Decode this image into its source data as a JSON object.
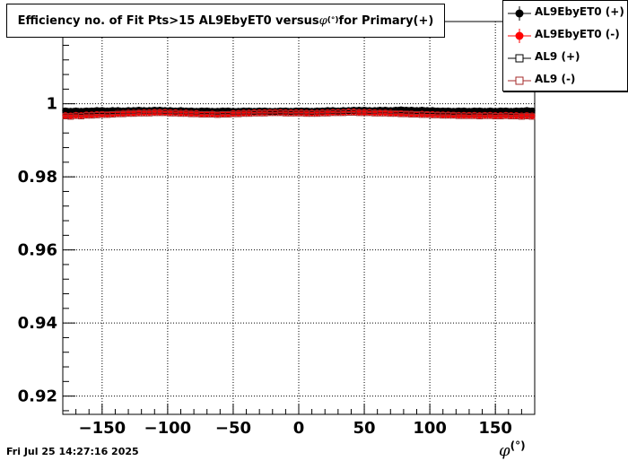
{
  "title": {
    "prefix": "Efficiency no. of Fit Pts>15 AL9EbyET0 versus ",
    "phi": "φ",
    "degree": "(°)",
    "suffix": " for Primary(+)"
  },
  "footer": {
    "date": "Fri Jul 25 14:27:16 2025"
  },
  "chart_data": {
    "type": "scatter",
    "xlabel_symbol": "φ",
    "xlabel_unit": "(°)",
    "ylabel": "",
    "xlim": [
      -180,
      180
    ],
    "ylim": [
      0.915,
      1.0225
    ],
    "xticks": [
      -150,
      -100,
      -50,
      0,
      50,
      100,
      150
    ],
    "xtick_labels": [
      "−150",
      "−100",
      "−50",
      "0",
      "50",
      "100",
      "150"
    ],
    "yticks": [
      0.92,
      0.94,
      0.96,
      0.98,
      1.0
    ],
    "ytick_labels": [
      "0.92",
      "0.94",
      "0.96",
      "0.98",
      "1"
    ],
    "grid": true,
    "legend_placement": "top-right",
    "x": [
      -178,
      -174,
      -170,
      -166,
      -162,
      -158,
      -154,
      -150,
      -146,
      -142,
      -138,
      -134,
      -130,
      -126,
      -122,
      -118,
      -114,
      -110,
      -106,
      -102,
      -98,
      -94,
      -90,
      -86,
      -82,
      -78,
      -74,
      -70,
      -66,
      -62,
      -58,
      -54,
      -50,
      -46,
      -42,
      -38,
      -34,
      -30,
      -26,
      -22,
      -18,
      -14,
      -10,
      -6,
      -2,
      2,
      6,
      10,
      14,
      18,
      22,
      26,
      30,
      34,
      38,
      42,
      46,
      50,
      54,
      58,
      62,
      66,
      70,
      74,
      78,
      82,
      86,
      90,
      94,
      98,
      102,
      106,
      110,
      114,
      118,
      122,
      126,
      130,
      134,
      138,
      142,
      146,
      150,
      154,
      158,
      162,
      166,
      170,
      174,
      178
    ],
    "series": [
      {
        "name": "AL9EbyET0 (+)",
        "color": "#000000",
        "marker": "filled-circle",
        "values": [
          0.9981,
          0.998,
          0.9981,
          0.998,
          0.9981,
          0.9981,
          0.9982,
          0.9982,
          0.9981,
          0.9982,
          0.9982,
          0.9981,
          0.9982,
          0.9982,
          0.9983,
          0.9982,
          0.9982,
          0.9983,
          0.9983,
          0.9982,
          0.9982,
          0.9981,
          0.9982,
          0.9981,
          0.9981,
          0.998,
          0.9981,
          0.9981,
          0.998,
          0.998,
          0.9981,
          0.9981,
          0.998,
          0.998,
          0.9981,
          0.9981,
          0.998,
          0.9981,
          0.9981,
          0.998,
          0.998,
          0.9981,
          0.9981,
          0.998,
          0.9981,
          0.9981,
          0.9981,
          0.998,
          0.9981,
          0.9981,
          0.9982,
          0.9982,
          0.9981,
          0.9982,
          0.9982,
          0.9983,
          0.9983,
          0.9983,
          0.9982,
          0.9982,
          0.9983,
          0.9983,
          0.9982,
          0.9983,
          0.9984,
          0.9983,
          0.9983,
          0.9982,
          0.9983,
          0.9982,
          0.9982,
          0.9981,
          0.9981,
          0.9981,
          0.998,
          0.9981,
          0.9981,
          0.998,
          0.9981,
          0.9981,
          0.998,
          0.9981,
          0.998,
          0.9981,
          0.9981,
          0.998,
          0.9981,
          0.9981,
          0.9982,
          0.9981
        ]
      },
      {
        "name": "AL9EbyET0 (-)",
        "color": "#ff0000",
        "marker": "filled-circle",
        "values": [
          0.9968,
          0.9967,
          0.9969,
          0.9968,
          0.997,
          0.997,
          0.9971,
          0.9972,
          0.9972,
          0.9973,
          0.9974,
          0.9974,
          0.9975,
          0.9975,
          0.9976,
          0.9976,
          0.9976,
          0.9977,
          0.9977,
          0.9977,
          0.9976,
          0.9976,
          0.9975,
          0.9975,
          0.9974,
          0.9974,
          0.9973,
          0.9973,
          0.9973,
          0.9972,
          0.9973,
          0.9973,
          0.9974,
          0.9974,
          0.9975,
          0.9975,
          0.9976,
          0.9976,
          0.9976,
          0.9977,
          0.9977,
          0.9977,
          0.9976,
          0.9976,
          0.9976,
          0.9976,
          0.9975,
          0.9975,
          0.9975,
          0.9976,
          0.9976,
          0.9977,
          0.9977,
          0.9977,
          0.9978,
          0.9978,
          0.9977,
          0.9977,
          0.9977,
          0.9976,
          0.9976,
          0.9976,
          0.9975,
          0.9975,
          0.9974,
          0.9974,
          0.9973,
          0.9973,
          0.9972,
          0.9972,
          0.9971,
          0.9971,
          0.997,
          0.997,
          0.997,
          0.9969,
          0.9969,
          0.9969,
          0.9969,
          0.9968,
          0.9969,
          0.9969,
          0.9968,
          0.9968,
          0.9969,
          0.9968,
          0.9968,
          0.9967,
          0.9968,
          0.9967
        ]
      },
      {
        "name": "AL9 (+)",
        "color": "#000000",
        "marker": "open-square",
        "values": [
          0.998,
          0.9979,
          0.998,
          0.9979,
          0.998,
          0.998,
          0.9981,
          0.9981,
          0.998,
          0.9981,
          0.9981,
          0.998,
          0.9981,
          0.9981,
          0.9982,
          0.9981,
          0.9981,
          0.9982,
          0.9982,
          0.9981,
          0.9981,
          0.998,
          0.9981,
          0.998,
          0.998,
          0.9979,
          0.998,
          0.998,
          0.9979,
          0.9979,
          0.998,
          0.998,
          0.9979,
          0.9979,
          0.998,
          0.998,
          0.9979,
          0.998,
          0.998,
          0.9979,
          0.9979,
          0.998,
          0.998,
          0.9979,
          0.998,
          0.998,
          0.998,
          0.9979,
          0.998,
          0.998,
          0.9981,
          0.9981,
          0.998,
          0.9981,
          0.9981,
          0.9982,
          0.9982,
          0.9982,
          0.9981,
          0.9981,
          0.9982,
          0.9982,
          0.9981,
          0.9982,
          0.9983,
          0.9982,
          0.9982,
          0.9981,
          0.9982,
          0.9981,
          0.9981,
          0.998,
          0.998,
          0.998,
          0.9979,
          0.998,
          0.998,
          0.9979,
          0.998,
          0.998,
          0.9979,
          0.998,
          0.9979,
          0.998,
          0.998,
          0.9979,
          0.998,
          0.998,
          0.9981,
          0.998
        ]
      },
      {
        "name": "AL9 (-)",
        "color": "#a52a2a",
        "marker": "open-square",
        "values": [
          0.9966,
          0.9965,
          0.9967,
          0.9966,
          0.9968,
          0.9968,
          0.9969,
          0.997,
          0.997,
          0.9971,
          0.9972,
          0.9972,
          0.9973,
          0.9973,
          0.9974,
          0.9974,
          0.9974,
          0.9975,
          0.9975,
          0.9975,
          0.9974,
          0.9974,
          0.9973,
          0.9973,
          0.9972,
          0.9972,
          0.9971,
          0.9971,
          0.9971,
          0.997,
          0.9971,
          0.9971,
          0.9972,
          0.9972,
          0.9973,
          0.9973,
          0.9974,
          0.9974,
          0.9974,
          0.9975,
          0.9975,
          0.9975,
          0.9974,
          0.9974,
          0.9974,
          0.9974,
          0.9973,
          0.9973,
          0.9973,
          0.9974,
          0.9974,
          0.9975,
          0.9975,
          0.9975,
          0.9976,
          0.9976,
          0.9975,
          0.9975,
          0.9975,
          0.9974,
          0.9974,
          0.9974,
          0.9973,
          0.9973,
          0.9972,
          0.9972,
          0.9971,
          0.9971,
          0.997,
          0.997,
          0.9969,
          0.9969,
          0.9968,
          0.9968,
          0.9968,
          0.9967,
          0.9967,
          0.9967,
          0.9967,
          0.9966,
          0.9967,
          0.9967,
          0.9966,
          0.9966,
          0.9967,
          0.9966,
          0.9966,
          0.9965,
          0.9966,
          0.9965
        ]
      }
    ]
  }
}
